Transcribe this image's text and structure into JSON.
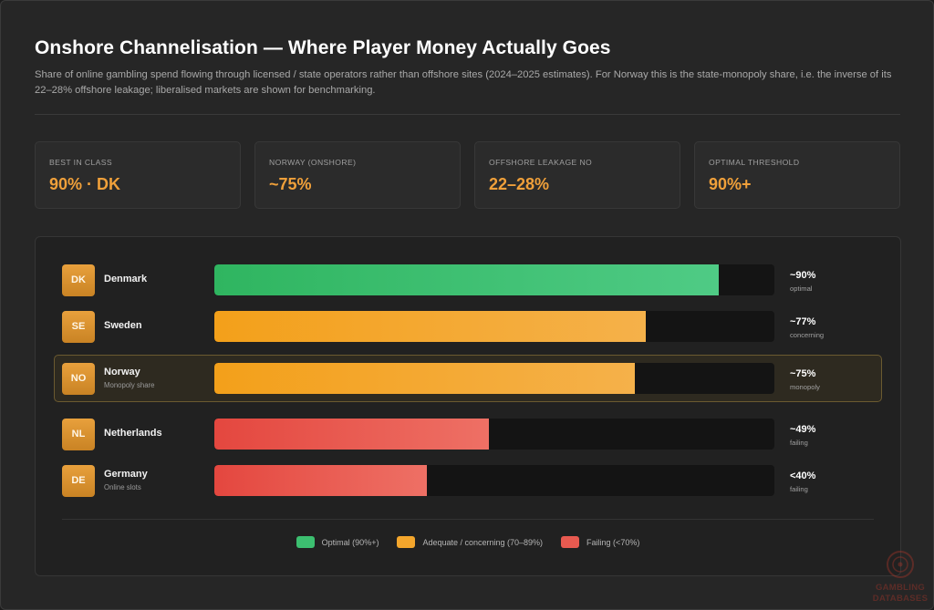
{
  "title": "Onshore Channelisation — Where Player Money Actually Goes",
  "subtitle": "Share of online gambling spend flowing through licensed / state operators rather than offshore sites (2024–2025 estimates). For Norway this is the state-monopoly share, i.e. the inverse of its 22–28% offshore leakage; liberalised markets are shown for benchmarking.",
  "stats": [
    {
      "label": "Best in class",
      "value": "90% · DK"
    },
    {
      "label": "Norway (onshore)",
      "value": "~75%"
    },
    {
      "label": "Offshore leakage NO",
      "value": "22–28%"
    },
    {
      "label": "Optimal threshold",
      "value": "90%+"
    }
  ],
  "colors": {
    "optimal": "#3cbf70",
    "adequate": "#f4a62c",
    "failing": "#e85a50",
    "accent": "#f0a03a"
  },
  "chart_data": {
    "type": "bar",
    "orientation": "horizontal",
    "xlim": [
      0,
      100
    ],
    "categories": [
      "Denmark",
      "Sweden",
      "Norway",
      "Netherlands",
      "Germany"
    ],
    "values": [
      90,
      77,
      75,
      49,
      38
    ],
    "rows": [
      {
        "code": "DK",
        "name": "Denmark",
        "sub": "",
        "value": 90,
        "label": "~90%",
        "status": "optimal",
        "tier": "optimal",
        "highlight": false
      },
      {
        "code": "SE",
        "name": "Sweden",
        "sub": "",
        "value": 77,
        "label": "~77%",
        "status": "concerning",
        "tier": "adequate",
        "highlight": false
      },
      {
        "code": "NO",
        "name": "Norway",
        "sub": "Monopoly share",
        "value": 75,
        "label": "~75%",
        "status": "monopoly",
        "tier": "adequate",
        "highlight": true
      },
      {
        "code": "NL",
        "name": "Netherlands",
        "sub": "",
        "value": 49,
        "label": "~49%",
        "status": "failing",
        "tier": "failing",
        "highlight": false
      },
      {
        "code": "DE",
        "name": "Germany",
        "sub": "Online slots",
        "value": 38,
        "label": "<40%",
        "status": "failing",
        "tier": "failing",
        "highlight": false
      }
    ],
    "legend": [
      {
        "tier": "optimal",
        "label": "Optimal (90%+)"
      },
      {
        "tier": "adequate",
        "label": "Adequate / concerning (70–89%)"
      },
      {
        "tier": "failing",
        "label": "Failing (<70%)"
      }
    ],
    "legend_position": "bottom-center",
    "grid": false
  },
  "logo": {
    "line1": "GAMBLING",
    "line2": "DATABASES",
    "icon": "roulette-wheel-icon"
  }
}
